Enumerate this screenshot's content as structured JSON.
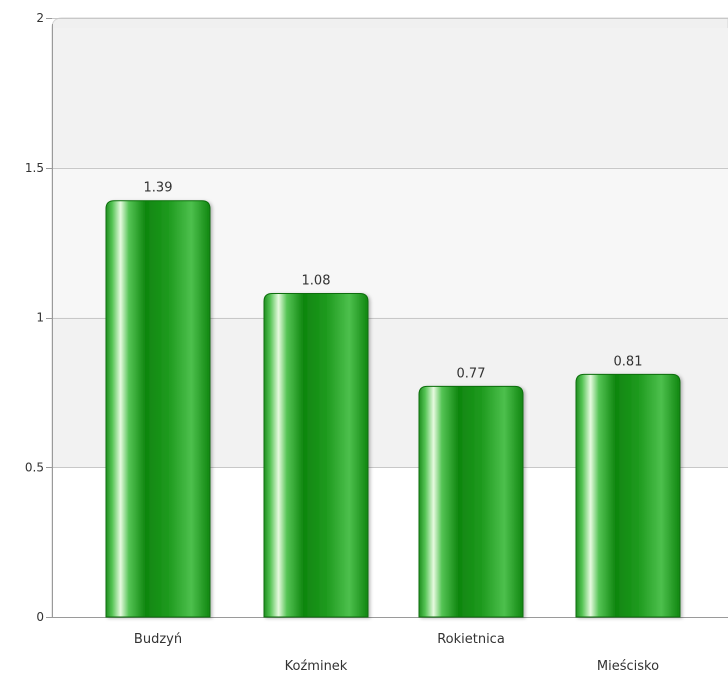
{
  "chart_data": {
    "type": "bar",
    "categories": [
      "Budzyń",
      "Koźminek",
      "Rokietnica",
      "Mieścisko"
    ],
    "values": [
      1.39,
      1.08,
      0.77,
      0.81
    ],
    "data_labels": [
      "1.39",
      "1.08",
      "0.77",
      "0.81"
    ],
    "title": "",
    "xlabel": "",
    "ylabel": "",
    "ylim": [
      0,
      2
    ],
    "yticks": [
      0,
      0.5,
      1,
      1.5,
      2
    ],
    "ytick_labels": [
      "0",
      "0.5",
      "1",
      "1.5",
      "2"
    ],
    "grid": true,
    "legend": "none",
    "colors": {
      "bar_dark": "#0a7d0a",
      "bar_mid": "#33b233",
      "bar_light": "#d9f7d0",
      "plot_band": "#f3f3f3",
      "plot_band_alt": "#ffffff",
      "grid": "#c8c8c8",
      "axis": "#9a9a9a",
      "text": "#333333"
    }
  }
}
